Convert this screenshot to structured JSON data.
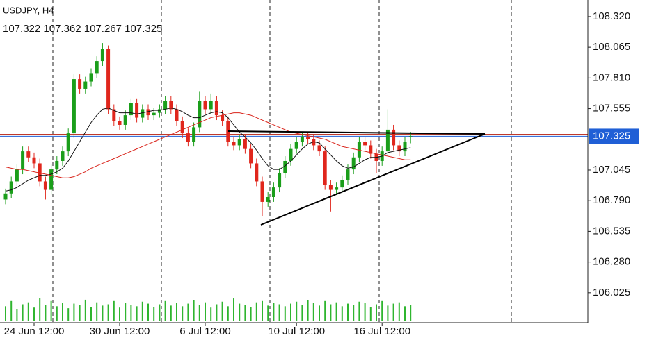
{
  "chart_data": {
    "type": "candlestick",
    "symbol": "USDJPY, H4",
    "ohlc_text": "107.322 107.362 107.267 107.325",
    "categories": [
      null,
      null,
      null,
      null,
      null,
      "24 Jun 12:00",
      null,
      null,
      null,
      null,
      null,
      null,
      null,
      null,
      null,
      null,
      null,
      null,
      null,
      null,
      "30 Jun 12:00",
      null,
      null,
      null,
      null,
      null,
      null,
      null,
      null,
      null,
      null,
      null,
      null,
      null,
      null,
      "6 Jul 12:00",
      null,
      null,
      null,
      null,
      null,
      null,
      null,
      null,
      null,
      null,
      null,
      null,
      null,
      null,
      null,
      "10 Jul 12:00",
      null,
      null,
      null,
      null,
      null,
      null,
      null,
      null,
      null,
      null,
      null,
      null,
      null,
      null,
      "16 Jul 12:00",
      null,
      null,
      null,
      null,
      null
    ],
    "open": [
      106.8,
      106.85,
      106.95,
      107.05,
      107.2,
      107.15,
      107.1,
      106.95,
      106.88,
      107.05,
      107.12,
      107.2,
      107.35,
      107.8,
      107.72,
      107.78,
      107.85,
      107.95,
      108.05,
      107.55,
      107.45,
      107.42,
      107.5,
      107.6,
      107.48,
      107.55,
      107.5,
      107.52,
      107.55,
      107.62,
      107.55,
      107.45,
      107.35,
      107.28,
      107.4,
      107.62,
      107.55,
      107.62,
      107.5,
      107.45,
      107.28,
      107.25,
      107.3,
      107.22,
      107.1,
      106.95,
      106.78,
      106.82,
      106.9,
      107.02,
      107.12,
      107.22,
      107.28,
      107.32,
      107.3,
      107.25,
      107.2,
      106.92,
      106.88,
      106.9,
      106.96,
      107.05,
      107.15,
      107.28,
      107.25,
      107.18,
      107.12,
      107.2,
      107.38,
      107.25,
      107.2,
      107.322
    ],
    "high": [
      106.89,
      106.99,
      107.09,
      107.24,
      107.24,
      107.19,
      107.14,
      106.99,
      107.09,
      107.16,
      107.24,
      107.39,
      107.84,
      107.84,
      107.82,
      107.89,
      107.99,
      108.1,
      108.08,
      107.59,
      107.49,
      107.54,
      107.64,
      107.64,
      107.59,
      107.59,
      107.56,
      107.59,
      107.66,
      107.66,
      107.59,
      107.49,
      107.39,
      107.44,
      107.7,
      107.66,
      107.68,
      107.66,
      107.54,
      107.49,
      107.32,
      107.34,
      107.34,
      107.26,
      107.14,
      106.99,
      106.86,
      106.94,
      107.06,
      107.16,
      107.26,
      107.32,
      107.36,
      107.36,
      107.34,
      107.29,
      107.24,
      106.96,
      106.94,
      107.0,
      107.09,
      107.19,
      107.32,
      107.32,
      107.29,
      107.22,
      107.24,
      107.55,
      107.42,
      107.29,
      107.32,
      107.362
    ],
    "low": [
      106.76,
      106.81,
      106.91,
      107.01,
      107.11,
      107.06,
      106.91,
      106.8,
      106.84,
      107.01,
      107.08,
      107.16,
      107.31,
      107.68,
      107.68,
      107.74,
      107.81,
      107.91,
      107.51,
      107.41,
      107.38,
      107.38,
      107.46,
      107.44,
      107.44,
      107.46,
      107.46,
      107.48,
      107.51,
      107.51,
      107.41,
      107.31,
      107.24,
      107.24,
      107.36,
      107.51,
      107.51,
      107.46,
      107.41,
      107.24,
      107.21,
      107.21,
      107.18,
      107.06,
      106.91,
      106.66,
      106.74,
      106.78,
      106.86,
      106.98,
      107.08,
      107.18,
      107.24,
      107.26,
      107.21,
      107.16,
      106.88,
      106.7,
      106.84,
      106.86,
      106.92,
      107.01,
      107.11,
      107.21,
      107.14,
      107.02,
      107.08,
      107.16,
      107.21,
      107.16,
      107.16,
      107.267
    ],
    "close": [
      106.85,
      106.95,
      107.05,
      107.2,
      107.15,
      107.1,
      106.95,
      106.88,
      107.05,
      107.12,
      107.2,
      107.35,
      107.8,
      107.72,
      107.78,
      107.85,
      107.95,
      108.05,
      107.55,
      107.45,
      107.42,
      107.5,
      107.6,
      107.48,
      107.55,
      107.5,
      107.52,
      107.55,
      107.62,
      107.55,
      107.45,
      107.35,
      107.28,
      107.4,
      107.62,
      107.55,
      107.62,
      107.5,
      107.45,
      107.28,
      107.25,
      107.3,
      107.22,
      107.1,
      106.95,
      106.78,
      106.82,
      106.9,
      107.02,
      107.12,
      107.22,
      107.28,
      107.32,
      107.3,
      107.25,
      107.2,
      106.92,
      106.88,
      106.9,
      106.96,
      107.05,
      107.15,
      107.28,
      107.25,
      107.18,
      107.12,
      107.2,
      107.38,
      107.25,
      107.2,
      107.28,
      107.325
    ],
    "up_color": "#1a9e1a",
    "down_color": "#e0261c",
    "lines": [
      {
        "color": "#111111",
        "values": [
          106.87,
          106.88,
          106.9,
          106.93,
          106.96,
          106.98,
          107.0,
          107.0,
          107.01,
          107.03,
          107.06,
          107.12,
          107.2,
          107.28,
          107.36,
          107.44,
          107.5,
          107.55,
          107.56,
          107.54,
          107.52,
          107.52,
          107.52,
          107.51,
          107.52,
          107.53,
          107.54,
          107.54,
          107.55,
          107.56,
          107.55,
          107.53,
          107.5,
          107.48,
          107.48,
          107.5,
          107.52,
          107.53,
          107.52,
          107.48,
          107.42,
          107.36,
          107.32,
          107.27,
          107.21,
          107.14,
          107.08,
          107.05,
          107.05,
          107.08,
          107.12,
          107.17,
          107.22,
          107.26,
          107.28,
          107.27,
          107.22,
          107.17,
          107.12,
          107.08,
          107.06,
          107.07,
          107.1,
          107.13,
          107.15,
          107.15,
          107.16,
          107.19,
          107.2,
          107.21,
          107.22,
          107.23
        ]
      },
      {
        "color": "#d9241b",
        "values": [
          107.07,
          107.06,
          107.05,
          107.05,
          107.04,
          107.03,
          107.02,
          107.01,
          107.0,
          106.99,
          106.98,
          106.98,
          106.99,
          107.01,
          107.03,
          107.06,
          107.08,
          107.1,
          107.12,
          107.14,
          107.16,
          107.18,
          107.2,
          107.22,
          107.24,
          107.26,
          107.28,
          107.3,
          107.32,
          107.34,
          107.36,
          107.38,
          107.4,
          107.42,
          107.44,
          107.46,
          107.48,
          107.49,
          107.5,
          107.51,
          107.52,
          107.52,
          107.51,
          107.5,
          107.48,
          107.46,
          107.44,
          107.42,
          107.4,
          107.38,
          107.36,
          107.35,
          107.34,
          107.33,
          107.32,
          107.31,
          107.3,
          107.28,
          107.26,
          107.24,
          107.23,
          107.22,
          107.21,
          107.2,
          107.19,
          107.18,
          107.17,
          107.16,
          107.15,
          107.14,
          107.13,
          107.13
        ]
      }
    ],
    "volume": [
      22,
      30,
      18,
      25,
      28,
      20,
      35,
      24,
      30,
      22,
      27,
      19,
      26,
      24,
      32,
      21,
      28,
      23,
      25,
      30,
      20,
      27,
      24,
      22,
      29,
      26,
      21,
      25,
      30,
      23,
      27,
      22,
      26,
      31,
      24,
      28,
      20,
      25,
      29,
      22,
      34,
      26,
      24,
      21,
      28,
      30,
      23,
      27,
      25,
      22,
      26,
      29,
      24,
      31,
      27,
      23,
      30,
      25,
      28,
      22,
      26,
      24,
      29,
      27,
      21,
      25,
      30,
      23,
      26,
      28,
      22,
      24
    ],
    "volume_color": "#2fb52f",
    "volume_ylim": [
      0,
      50
    ],
    "ylim": [
      105.776,
      108.458
    ],
    "yticks": [
      {
        "value": 108.32,
        "label": "108.320"
      },
      108.065,
      {
        "value": 107.81,
        "label": "107.810"
      },
      107.555,
      107.045,
      {
        "value": 106.79,
        "label": "106.790"
      },
      106.535,
      {
        "value": 106.28,
        "label": "106.280"
      },
      106.025
    ],
    "last_price": 107.325,
    "last_color": "#1f5fd6",
    "ask_price": 107.342,
    "ask_color": "#c0392b"
  }
}
